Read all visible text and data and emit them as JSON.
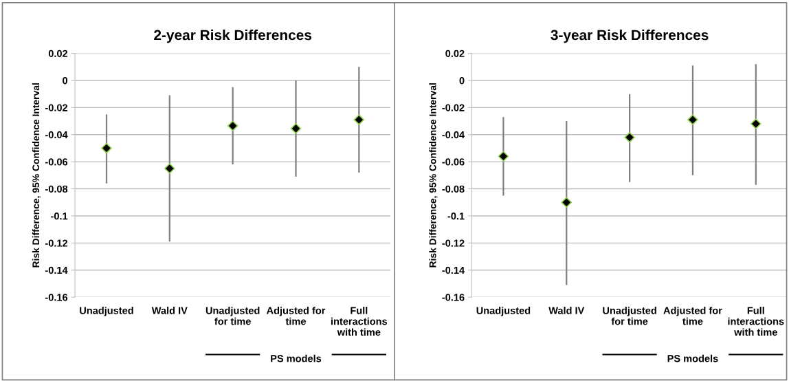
{
  "chart_data": [
    {
      "type": "scatter",
      "title": "2-year Risk Differences",
      "ylabel": "Risk Difference, 95% Confidence Interval",
      "categories": [
        "Unadjusted",
        "Wald IV",
        "Unadjusted\nfor time",
        "Adjusted for\ntime",
        "Full\ninteractions\nwith time"
      ],
      "series": [
        {
          "color": "#000000",
          "values": [
            -0.05,
            -0.065,
            -0.0335,
            -0.0355,
            -0.029
          ],
          "errors": [
            [
              -0.076,
              -0.025
            ],
            [
              -0.119,
              -0.011
            ],
            [
              -0.062,
              -0.005
            ],
            [
              -0.071,
              0.0
            ],
            [
              -0.068,
              0.01
            ]
          ]
        }
      ],
      "ylim": [
        -0.16,
        0.02
      ],
      "yticks": [
        -0.16,
        -0.14,
        -0.12,
        -0.1,
        -0.08,
        -0.06,
        -0.04,
        -0.02,
        0,
        0.02
      ],
      "grid": "y",
      "marker": "diamond",
      "annotations": [
        "PS models"
      ]
    },
    {
      "type": "scatter",
      "title": "3-year Risk Differences",
      "ylabel": "Risk Difference, 95% Confidence Interval",
      "categories": [
        "Unadjusted",
        "Wald IV",
        "Unadjusted\nfor time",
        "Adjusted for\ntime",
        "Full\ninteractions\nwith time"
      ],
      "series": [
        {
          "color": "#000000",
          "values": [
            -0.056,
            -0.09,
            -0.042,
            -0.029,
            -0.032
          ],
          "errors": [
            [
              -0.085,
              -0.027
            ],
            [
              -0.151,
              -0.03
            ],
            [
              -0.075,
              -0.01
            ],
            [
              -0.07,
              0.011
            ],
            [
              -0.077,
              0.012
            ]
          ]
        }
      ],
      "ylim": [
        -0.16,
        0.02
      ],
      "yticks": [
        -0.16,
        -0.14,
        -0.12,
        -0.1,
        -0.08,
        -0.06,
        -0.04,
        -0.02,
        0,
        0.02
      ],
      "grid": "y",
      "marker": "diamond",
      "annotations": [
        "PS models"
      ]
    }
  ]
}
